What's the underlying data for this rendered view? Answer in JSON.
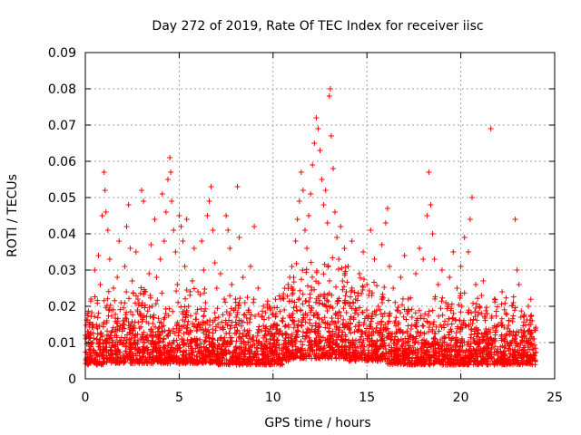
{
  "chart_data": {
    "type": "scatter",
    "title": "Day 272 of 2019, Rate Of TEC Index for receiver iisc",
    "xlabel": "GPS time / hours",
    "ylabel": "ROTI / TECUs",
    "xlim": [
      0,
      25
    ],
    "ylim": [
      0,
      0.09
    ],
    "grid": true,
    "marker": "+",
    "color": "#ff0000",
    "x_ticks": [
      {
        "value": 0,
        "label": "0"
      },
      {
        "value": 5,
        "label": "5"
      },
      {
        "value": 10,
        "label": "10"
      },
      {
        "value": 15,
        "label": "15"
      },
      {
        "value": 20,
        "label": "20"
      },
      {
        "value": 25,
        "label": "25"
      }
    ],
    "y_ticks": [
      {
        "value": 0,
        "label": "0"
      },
      {
        "value": 0.01,
        "label": "0.01"
      },
      {
        "value": 0.02,
        "label": "0.02"
      },
      {
        "value": 0.03,
        "label": "0.03"
      },
      {
        "value": 0.04,
        "label": "0.04"
      },
      {
        "value": 0.05,
        "label": "0.05"
      },
      {
        "value": 0.06,
        "label": "0.06"
      },
      {
        "value": 0.07,
        "label": "0.07"
      },
      {
        "value": 0.08,
        "label": "0.08"
      },
      {
        "value": 0.09,
        "label": "0.09"
      }
    ],
    "series": [
      {
        "name": "ROTI",
        "points": [
          [
            0.0,
            0.012
          ],
          [
            0.1,
            0.018
          ],
          [
            0.2,
            0.009
          ],
          [
            0.3,
            0.022
          ],
          [
            0.4,
            0.015
          ],
          [
            0.5,
            0.03
          ],
          [
            0.6,
            0.011
          ],
          [
            0.7,
            0.034
          ],
          [
            0.8,
            0.026
          ],
          [
            0.9,
            0.045
          ],
          [
            1.0,
            0.057
          ],
          [
            1.05,
            0.052
          ],
          [
            1.1,
            0.046
          ],
          [
            1.2,
            0.041
          ],
          [
            1.3,
            0.033
          ],
          [
            1.4,
            0.019
          ],
          [
            1.5,
            0.025
          ],
          [
            1.6,
            0.013
          ],
          [
            1.7,
            0.028
          ],
          [
            1.8,
            0.038
          ],
          [
            1.9,
            0.021
          ],
          [
            2.0,
            0.016
          ],
          [
            2.1,
            0.031
          ],
          [
            2.2,
            0.042
          ],
          [
            2.3,
            0.048
          ],
          [
            2.4,
            0.036
          ],
          [
            2.5,
            0.027
          ],
          [
            2.6,
            0.014
          ],
          [
            2.7,
            0.035
          ],
          [
            2.8,
            0.022
          ],
          [
            2.9,
            0.018
          ],
          [
            3.0,
            0.052
          ],
          [
            3.1,
            0.049
          ],
          [
            3.2,
            0.024
          ],
          [
            3.3,
            0.012
          ],
          [
            3.4,
            0.029
          ],
          [
            3.5,
            0.037
          ],
          [
            3.6,
            0.017
          ],
          [
            3.7,
            0.044
          ],
          [
            3.8,
            0.028
          ],
          [
            3.9,
            0.011
          ],
          [
            4.0,
            0.033
          ],
          [
            4.1,
            0.051
          ],
          [
            4.2,
            0.038
          ],
          [
            4.3,
            0.046
          ],
          [
            4.4,
            0.055
          ],
          [
            4.5,
            0.061
          ],
          [
            4.55,
            0.057
          ],
          [
            4.6,
            0.049
          ],
          [
            4.7,
            0.041
          ],
          [
            4.8,
            0.035
          ],
          [
            4.9,
            0.026
          ],
          [
            5.0,
            0.045
          ],
          [
            5.1,
            0.042
          ],
          [
            5.2,
            0.038
          ],
          [
            5.3,
            0.031
          ],
          [
            5.4,
            0.044
          ],
          [
            5.5,
            0.02
          ],
          [
            5.6,
            0.013
          ],
          [
            5.7,
            0.027
          ],
          [
            5.8,
            0.036
          ],
          [
            5.9,
            0.018
          ],
          [
            6.0,
            0.024
          ],
          [
            6.1,
            0.015
          ],
          [
            6.2,
            0.038
          ],
          [
            6.3,
            0.03
          ],
          [
            6.4,
            0.021
          ],
          [
            6.5,
            0.045
          ],
          [
            6.6,
            0.049
          ],
          [
            6.7,
            0.053
          ],
          [
            6.8,
            0.041
          ],
          [
            6.9,
            0.032
          ],
          [
            7.0,
            0.025
          ],
          [
            7.1,
            0.017
          ],
          [
            7.2,
            0.029
          ],
          [
            7.3,
            0.014
          ],
          [
            7.4,
            0.022
          ],
          [
            7.5,
            0.045
          ],
          [
            7.6,
            0.041
          ],
          [
            7.7,
            0.036
          ],
          [
            7.8,
            0.026
          ],
          [
            7.9,
            0.019
          ],
          [
            8.0,
            0.022
          ],
          [
            8.1,
            0.053
          ],
          [
            8.2,
            0.039
          ],
          [
            8.3,
            0.016
          ],
          [
            8.4,
            0.028
          ],
          [
            8.5,
            0.021
          ],
          [
            8.6,
            0.012
          ],
          [
            8.8,
            0.031
          ],
          [
            9.0,
            0.042
          ],
          [
            9.2,
            0.025
          ],
          [
            9.4,
            0.017
          ],
          [
            9.6,
            0.014
          ],
          [
            9.8,
            0.02
          ],
          [
            10.0,
            0.018
          ],
          [
            10.2,
            0.015
          ],
          [
            10.4,
            0.022
          ],
          [
            10.6,
            0.019
          ],
          [
            10.8,
            0.026
          ],
          [
            11.0,
            0.031
          ],
          [
            11.1,
            0.028
          ],
          [
            11.2,
            0.038
          ],
          [
            11.3,
            0.044
          ],
          [
            11.4,
            0.049
          ],
          [
            11.5,
            0.057
          ],
          [
            11.6,
            0.052
          ],
          [
            11.7,
            0.041
          ],
          [
            11.8,
            0.036
          ],
          [
            11.9,
            0.045
          ],
          [
            12.0,
            0.051
          ],
          [
            12.1,
            0.059
          ],
          [
            12.2,
            0.065
          ],
          [
            12.3,
            0.072
          ],
          [
            12.4,
            0.069
          ],
          [
            12.5,
            0.063
          ],
          [
            12.6,
            0.055
          ],
          [
            12.7,
            0.048
          ],
          [
            12.8,
            0.052
          ],
          [
            12.9,
            0.043
          ],
          [
            13.0,
            0.078
          ],
          [
            13.05,
            0.08
          ],
          [
            13.1,
            0.067
          ],
          [
            13.2,
            0.058
          ],
          [
            13.3,
            0.046
          ],
          [
            13.4,
            0.039
          ],
          [
            13.5,
            0.033
          ],
          [
            13.6,
            0.042
          ],
          [
            13.7,
            0.027
          ],
          [
            13.8,
            0.036
          ],
          [
            13.9,
            0.024
          ],
          [
            14.0,
            0.031
          ],
          [
            14.2,
            0.038
          ],
          [
            14.4,
            0.022
          ],
          [
            14.6,
            0.029
          ],
          [
            14.8,
            0.035
          ],
          [
            15.0,
            0.026
          ],
          [
            15.2,
            0.041
          ],
          [
            15.4,
            0.033
          ],
          [
            15.6,
            0.02
          ],
          [
            15.8,
            0.037
          ],
          [
            16.0,
            0.043
          ],
          [
            16.1,
            0.047
          ],
          [
            16.2,
            0.031
          ],
          [
            16.4,
            0.025
          ],
          [
            16.6,
            0.019
          ],
          [
            16.8,
            0.028
          ],
          [
            17.0,
            0.034
          ],
          [
            17.2,
            0.022
          ],
          [
            17.4,
            0.017
          ],
          [
            17.6,
            0.029
          ],
          [
            17.8,
            0.036
          ],
          [
            18.0,
            0.033
          ],
          [
            18.2,
            0.045
          ],
          [
            18.3,
            0.057
          ],
          [
            18.4,
            0.048
          ],
          [
            18.5,
            0.04
          ],
          [
            18.6,
            0.033
          ],
          [
            18.8,
            0.026
          ],
          [
            19.0,
            0.03
          ],
          [
            19.2,
            0.021
          ],
          [
            19.4,
            0.028
          ],
          [
            19.6,
            0.035
          ],
          [
            19.8,
            0.025
          ],
          [
            20.0,
            0.031
          ],
          [
            20.2,
            0.039
          ],
          [
            20.4,
            0.035
          ],
          [
            20.5,
            0.044
          ],
          [
            20.6,
            0.05
          ],
          [
            20.8,
            0.026
          ],
          [
            21.0,
            0.02
          ],
          [
            21.2,
            0.027
          ],
          [
            21.4,
            0.018
          ],
          [
            21.6,
            0.069
          ],
          [
            21.8,
            0.022
          ],
          [
            22.0,
            0.015
          ],
          [
            22.2,
            0.024
          ],
          [
            22.4,
            0.018
          ],
          [
            22.6,
            0.013
          ],
          [
            22.8,
            0.021
          ],
          [
            22.9,
            0.044
          ],
          [
            23.0,
            0.03
          ],
          [
            23.1,
            0.026
          ],
          [
            23.2,
            0.017
          ],
          [
            23.4,
            0.012
          ],
          [
            23.6,
            0.02
          ],
          [
            23.8,
            0.016
          ],
          [
            23.9,
            0.011
          ]
        ]
      }
    ]
  }
}
